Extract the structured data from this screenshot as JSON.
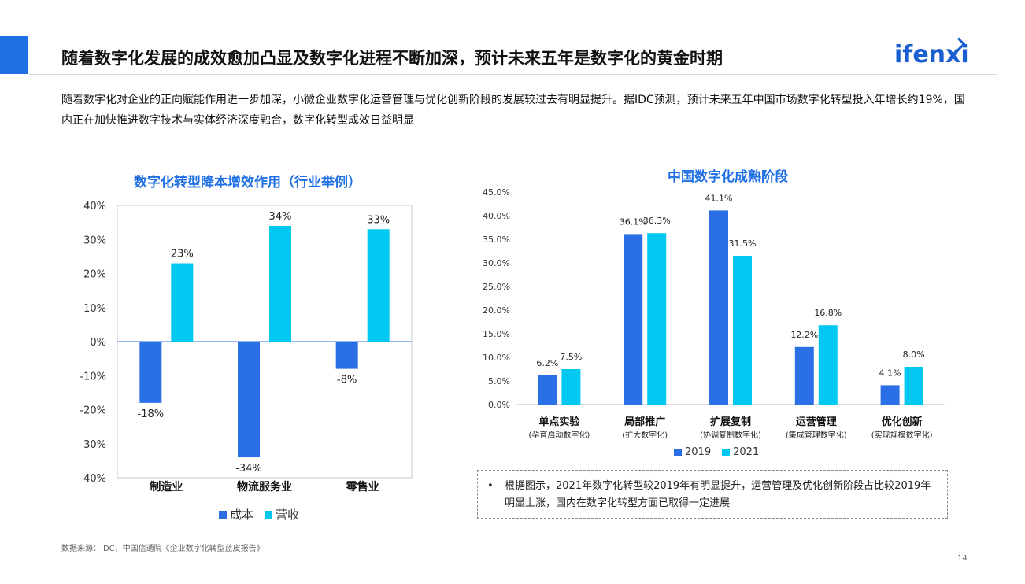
{
  "title": "随着数字化发展的成效愈加凸显及数字化进程不断加深，预计未来五年是数字化的黄金时期",
  "logo": "ifenxi",
  "intro": "随着数字化对企业的正向赋能作用进一步加深，小微企业数字化运营管理与优化创新阶段的发展较过去有明显提升。据IDC预测，预计未来五年中国市场数字化转型投入年增长约19%，国内正在加快推进数字技术与实体经济深度融合，数字化转型成效日益明显",
  "note": "根据图示，2021年数字化转型较2019年有明显提升，运营管理及优化创新阶段占比较2019年明显上涨，国内在数字化转型方面已取得一定进展",
  "source": "数据来源：IDC，中国信通院《企业数字化转型蓝皮报告》",
  "page_number": "14",
  "colors": {
    "accent": "#1f6fe5",
    "series_a": "#2b6fe6",
    "series_b": "#00c8f0"
  },
  "chart_data": [
    {
      "type": "bar",
      "title": "数字化转型降本增效作用（行业举例）",
      "categories": [
        "制造业",
        "物流服务业",
        "零售业"
      ],
      "series": [
        {
          "name": "成本",
          "values": [
            -18,
            -34,
            -8
          ],
          "labels": [
            "-18%",
            "-34%",
            "-8%"
          ]
        },
        {
          "name": "营收",
          "values": [
            23,
            34,
            33
          ],
          "labels": [
            "23%",
            "34%",
            "33%"
          ]
        }
      ],
      "ylim": [
        -40,
        40
      ],
      "yticks": [
        40,
        30,
        20,
        10,
        0,
        -10,
        -20,
        -30,
        -40
      ],
      "ytick_labels": [
        "40%",
        "30%",
        "20%",
        "10%",
        "0%",
        "-10%",
        "-20%",
        "-30%",
        "-40%"
      ],
      "legend": "bottom",
      "grid": false
    },
    {
      "type": "bar",
      "title": "中国数字化成熟阶段",
      "categories": [
        "单点实验",
        "局部推广",
        "扩展复制",
        "运营管理",
        "优化创新"
      ],
      "subcategories": [
        "(孕育启动数字化)",
        "(扩大数字化)",
        "(协调复制数字化)",
        "(集成管理数字化)",
        "(实现规模数字化)"
      ],
      "series": [
        {
          "name": "2019",
          "values": [
            6.2,
            36.1,
            41.1,
            12.2,
            4.1
          ],
          "labels": [
            "6.2%",
            "36.1%",
            "41.1%",
            "12.2%",
            "4.1%"
          ]
        },
        {
          "name": "2021",
          "values": [
            7.5,
            36.3,
            31.5,
            16.8,
            8.0
          ],
          "labels": [
            "7.5%",
            "36.3%",
            "31.5%",
            "16.8%",
            "8.0%"
          ]
        }
      ],
      "ylim": [
        0,
        45
      ],
      "yticks": [
        45,
        40,
        35,
        30,
        25,
        20,
        15,
        10,
        5,
        0
      ],
      "ytick_labels": [
        "45.0%",
        "40.0%",
        "35.0%",
        "30.0%",
        "25.0%",
        "20.0%",
        "15.0%",
        "10.0%",
        "5.0%",
        "0.0%"
      ],
      "legend": "bottom",
      "grid": false
    }
  ]
}
